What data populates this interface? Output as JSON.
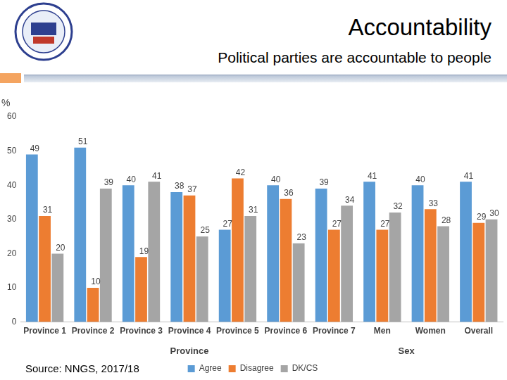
{
  "title": "Accountability",
  "subtitle": "Political parties are accountable to people",
  "source": "Source: NNGS, 2017/18",
  "chart_data": {
    "type": "bar",
    "ylabel": "%",
    "categories": [
      "Province 1",
      "Province 2",
      "Province 3",
      "Province 4",
      "Province 5",
      "Province 6",
      "Province 7",
      "Men",
      "Women",
      "Overall"
    ],
    "category_groups": [
      "Province",
      "Province",
      "Province",
      "Province",
      "Province",
      "Province",
      "Province",
      "Sex",
      "Sex",
      null
    ],
    "series": [
      {
        "name": "Agree",
        "color": "#5b9bd5",
        "values": [
          49,
          51,
          40,
          38,
          27,
          40,
          39,
          41,
          40,
          41
        ]
      },
      {
        "name": "Disagree",
        "color": "#ed7d31",
        "values": [
          31,
          10,
          19,
          37,
          42,
          36,
          27,
          27,
          33,
          29
        ]
      },
      {
        "name": "DK/CS",
        "color": "#a5a5a5",
        "values": [
          20,
          39,
          41,
          25,
          31,
          23,
          34,
          32,
          28,
          30
        ]
      }
    ],
    "ylim": [
      0,
      60
    ],
    "yticks": [
      0,
      10,
      20,
      30,
      40,
      50,
      60
    ],
    "grid": false,
    "legend": "bottom",
    "data_labels": true
  }
}
